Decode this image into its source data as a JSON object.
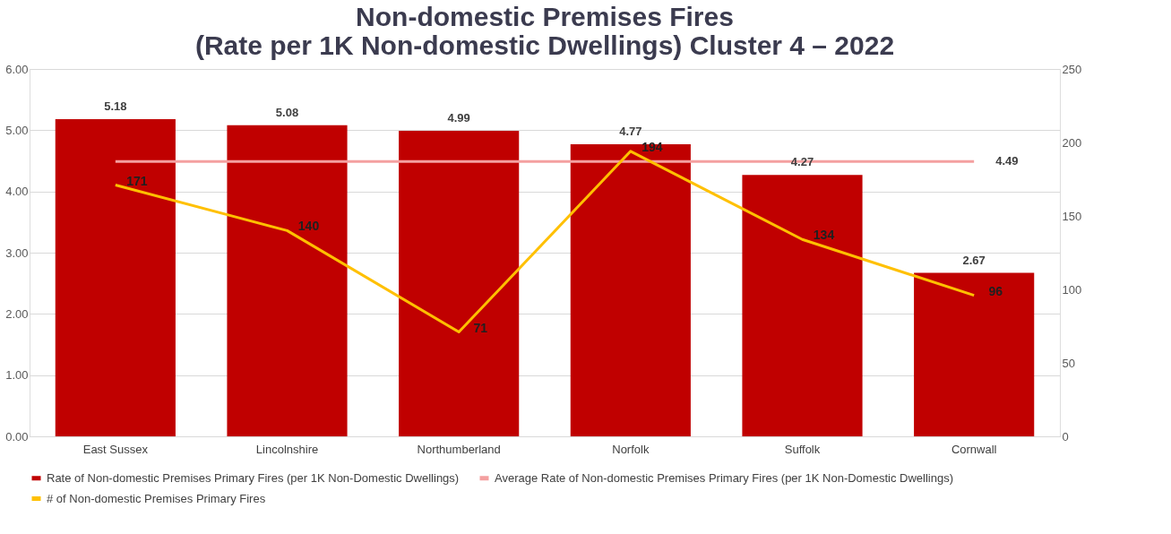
{
  "chart_data": {
    "type": "bar",
    "title": "Non-domestic Premises Fires\n(Rate per 1K Non-domestic Dwellings) Cluster 4 – 2022",
    "categories": [
      "East Sussex",
      "Lincolnshire",
      "Northumberland",
      "Norfolk",
      "Suffolk",
      "Cornwall"
    ],
    "series": [
      {
        "name": "Rate of Non-domestic Premises Primary Fires (per 1K Non-Domestic Dwellings)",
        "color": "#c00000",
        "values": [
          5.18,
          5.08,
          4.99,
          4.77,
          4.27,
          2.67
        ],
        "value_labels": [
          "5.18",
          "5.08",
          "4.99",
          "4.77",
          "4.27",
          "2.67"
        ]
      },
      {
        "name": "Average Rate of Non-domestic Premises Primary Fires (per 1K Non-Domestic Dwellings)",
        "type": "line",
        "color": "#f4a0a0",
        "values": [
          4.49,
          4.49,
          4.49,
          4.49,
          4.49,
          4.49
        ],
        "value_labels": [
          null,
          null,
          null,
          null,
          null,
          "4.49"
        ]
      },
      {
        "name": "# of Non-domestic Premises Primary Fires",
        "type": "line",
        "axis": "y2",
        "color": "#ffc000",
        "values": [
          171,
          140,
          71,
          194,
          134,
          96
        ],
        "value_labels": [
          "171",
          "140",
          "71",
          "194",
          "134",
          "96"
        ]
      }
    ],
    "ylim": [
      0,
      6
    ],
    "yticks": [
      {
        "value": 0,
        "label": "0.00"
      },
      {
        "value": 1,
        "label": "1.00"
      },
      {
        "value": 2,
        "label": "2.00"
      },
      {
        "value": 3,
        "label": "3.00"
      },
      {
        "value": 4,
        "label": "4.00"
      },
      {
        "value": 5,
        "label": "5.00"
      },
      {
        "value": 6,
        "label": "6.00"
      }
    ],
    "y2lim": [
      0,
      250
    ],
    "y2ticks": [
      0,
      50,
      100,
      150,
      200,
      250
    ],
    "grid": "y",
    "legend": "bottom"
  }
}
